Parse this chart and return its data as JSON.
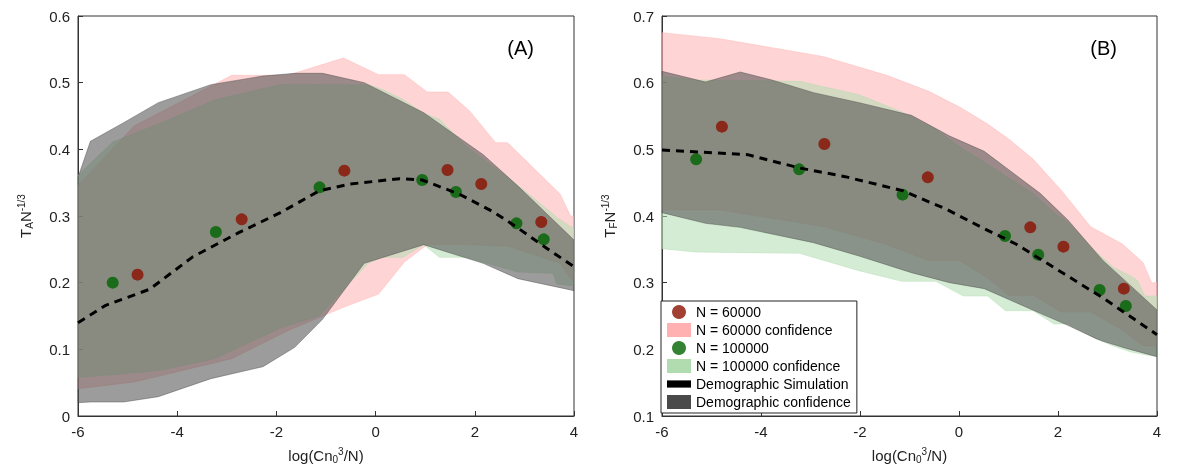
{
  "chart_data": [
    {
      "type": "scatter",
      "xlabel": "log(Cn$_{0}$$^{3}$/N)",
      "ylabel": "T$_{A}$N$^{-1/3}$",
      "annotations": [
        "(A)"
      ],
      "xlim": [
        -6,
        4
      ],
      "xticks": [
        -6,
        -4,
        -2,
        0,
        2,
        4
      ],
      "ylim": [
        0,
        0.6
      ],
      "yticks": [
        0,
        0.1,
        0.2,
        0.3,
        0.4,
        0.5,
        0.6
      ],
      "legend": false,
      "series": [
        {
          "color": "#8b1000",
          "x": [
            -4.8,
            -2.7,
            -0.63,
            1.45,
            2.13,
            3.34
          ],
          "values": [
            0.212,
            0.295,
            0.368,
            0.369,
            0.348,
            0.291
          ]
        },
        {
          "type": "area",
          "color": "#ffb0b0",
          "x": [
            -6,
            -4.87,
            -2.9,
            -1.77,
            -0.65,
            0.06,
            0.58,
            1.04,
            1.46,
            1.89,
            2.42,
            2.66,
            3.72,
            3.93,
            4
          ],
          "values": [
            null,
            null,
            null,
            null,
            null,
            null,
            null,
            null,
            null,
            null,
            null,
            null,
            null,
            null,
            null
          ],
          "upper": [
            0.346,
            0.435,
            0.511,
            0.511,
            0.537,
            0.512,
            0.512,
            0.486,
            0.486,
            0.458,
            0.41,
            0.41,
            0.333,
            0.3,
            0.3
          ],
          "lower": [
            0.041,
            0.051,
            0.086,
            0.128,
            0.163,
            0.183,
            0.231,
            0.257,
            0.257,
            0.257,
            0.255,
            0.255,
            0.229,
            0.206,
            0.204
          ]
        },
        {
          "color": "#006400",
          "x": [
            -5.3,
            -3.22,
            -1.13,
            0.94,
            1.62,
            2.84,
            3.39
          ],
          "values": [
            0.2,
            0.276,
            0.343,
            0.354,
            0.336,
            0.289,
            0.265
          ]
        },
        {
          "type": "area",
          "color": "#b0dcb0",
          "x": [
            -6,
            -5.3,
            -4.31,
            -3.25,
            -1.92,
            -1.14,
            -0.15,
            0.13,
            0.55,
            0.97,
            1.29,
            1.82,
            2.87,
            3.58,
            3.65,
            4
          ],
          "values": [
            null,
            null,
            null,
            null,
            null,
            null,
            null,
            null,
            null,
            null,
            null,
            null,
            null,
            null,
            null,
            null
          ],
          "upper": [
            0.361,
            0.411,
            0.44,
            0.474,
            0.497,
            0.497,
            0.497,
            0.49,
            0.475,
            0.454,
            0.445,
            0.405,
            0.346,
            0.303,
            0.298,
            0.281
          ],
          "lower": [
            0.058,
            0.062,
            0.069,
            0.086,
            0.132,
            0.15,
            0.229,
            0.238,
            0.238,
            0.257,
            0.238,
            0.238,
            0.216,
            0.214,
            0.198,
            0.195
          ]
        },
        {
          "type": "line",
          "color": "#000000",
          "line_style": "dashed",
          "marker": "none",
          "x": [
            -6,
            -5.44,
            -4.56,
            -3.68,
            -2.76,
            -1.92,
            -1.13,
            -0.51,
            0.48,
            0.94,
            1.68,
            2.38,
            2.87,
            3.44,
            4
          ],
          "values": [
            0.14,
            0.166,
            0.19,
            0.239,
            0.275,
            0.305,
            0.338,
            0.348,
            0.356,
            0.354,
            0.333,
            0.306,
            0.282,
            0.252,
            0.224
          ]
        },
        {
          "type": "area",
          "color": "#4a4a4a",
          "x": [
            -6,
            -5.75,
            -5.08,
            -4.38,
            -3.32,
            -2.27,
            -1.63,
            -1.07,
            -0.23,
            0.97,
            2.17,
            2.87,
            4
          ],
          "values": [
            null,
            null,
            null,
            null,
            null,
            null,
            null,
            null,
            null,
            null,
            null,
            null,
            null
          ],
          "upper": [
            0.358,
            0.412,
            0.44,
            0.47,
            0.497,
            0.51,
            0.514,
            0.514,
            0.5,
            0.455,
            0.392,
            0.345,
            0.264
          ],
          "lower": [
            0.02,
            0.021,
            0.021,
            0.029,
            0.056,
            0.074,
            0.103,
            0.145,
            0.229,
            0.257,
            0.229,
            0.206,
            0.188
          ]
        }
      ]
    },
    {
      "type": "scatter",
      "xlabel": "log(Cn$_{0}$$^{3}$/N)",
      "ylabel": "T$_{F}$N$^{-1/3}$",
      "annotations": [
        "(B)"
      ],
      "xlim": [
        -6,
        4
      ],
      "xticks": [
        -6,
        -4,
        -2,
        0,
        2,
        4
      ],
      "ylim": [
        0.1,
        0.7
      ],
      "yticks": [
        0.1,
        0.2,
        0.3,
        0.4,
        0.5,
        0.6,
        0.7
      ],
      "legend": "bottom left",
      "series": [
        {
          "name": "N = 60000",
          "color": "#8b1000",
          "x": [
            -4.79,
            -2.72,
            -0.63,
            1.44,
            2.11,
            3.33
          ],
          "values": [
            0.534,
            0.508,
            0.458,
            0.383,
            0.354,
            0.291
          ]
        },
        {
          "name": "N = 60000 confidence",
          "type": "area",
          "color": "#ffb0b0",
          "x": [
            -6,
            -4.84,
            -2.73,
            -1.46,
            -0.61,
            0.02,
            0.58,
            1.01,
            1.5,
            2.06,
            2.66,
            3.3,
            3.72,
            3.89,
            4
          ],
          "values": [
            null,
            null,
            null,
            null,
            null,
            null,
            null,
            null,
            null,
            null,
            null,
            null,
            null,
            null,
            null
          ],
          "upper": [
            0.675,
            0.666,
            0.639,
            0.611,
            0.587,
            0.563,
            0.538,
            0.515,
            0.485,
            0.439,
            0.384,
            0.358,
            0.33,
            0.3,
            0.3
          ],
          "lower": [
            0.409,
            0.409,
            0.384,
            0.357,
            0.333,
            0.333,
            0.307,
            0.281,
            0.281,
            0.256,
            0.256,
            0.229,
            0.205,
            0.205,
            0.205
          ]
        },
        {
          "name": "N = 100000",
          "color": "#006400",
          "x": [
            -5.31,
            -3.23,
            -1.14,
            0.93,
            1.6,
            2.84,
            3.37
          ],
          "values": [
            0.485,
            0.47,
            0.432,
            0.37,
            0.342,
            0.289,
            0.265
          ]
        },
        {
          "name": "N = 100000 confidence",
          "type": "area",
          "color": "#b0dcb0",
          "x": [
            -6,
            -5.33,
            -3.22,
            -2.02,
            -1.15,
            -0.47,
            0.09,
            0.58,
            0.94,
            1.5,
            1.92,
            2.2,
            2.77,
            3.12,
            3.47,
            3.61,
            3.75,
            4
          ],
          "values": [
            null,
            null,
            null,
            null,
            null,
            null,
            null,
            null,
            null,
            null,
            null,
            null,
            null,
            null,
            null,
            null,
            null,
            null
          ],
          "upper": [
            0.61,
            0.604,
            0.602,
            0.582,
            0.556,
            0.53,
            0.5,
            0.478,
            0.46,
            0.434,
            0.405,
            0.39,
            0.346,
            0.323,
            0.31,
            0.303,
            0.28,
            0.28
          ],
          "lower": [
            0.351,
            0.346,
            0.344,
            0.318,
            0.302,
            0.302,
            0.28,
            0.28,
            0.258,
            0.258,
            0.238,
            0.238,
            0.216,
            0.205,
            0.196,
            0.194,
            0.192,
            0.189
          ]
        },
        {
          "name": "Demographic Simulation",
          "type": "line",
          "color": "#000000",
          "line_style": "dashed",
          "marker": "none",
          "x": [
            -6,
            -4.98,
            -4.27,
            -3.22,
            -2.3,
            -1.14,
            -0.25,
            0.51,
            1.15,
            2.13,
            2.91,
            4
          ],
          "values": [
            0.499,
            0.495,
            0.492,
            0.472,
            0.459,
            0.438,
            0.41,
            0.381,
            0.358,
            0.313,
            0.277,
            0.222
          ]
        },
        {
          "name": "Demographic confidence",
          "type": "area",
          "color": "#4a4a4a",
          "x": [
            -6,
            -5.12,
            -4.42,
            -3.78,
            -2.94,
            -2.02,
            -0.96,
            -0.19,
            0.51,
            1.64,
            2.2,
            2.77,
            2.91,
            3.4,
            4
          ],
          "values": [
            null,
            null,
            null,
            null,
            null,
            null,
            null,
            null,
            null,
            null,
            null,
            null,
            null,
            null,
            null
          ],
          "upper": [
            0.617,
            0.601,
            0.616,
            0.604,
            0.585,
            0.57,
            0.551,
            0.52,
            0.497,
            0.434,
            0.394,
            0.345,
            0.333,
            0.3,
            0.259
          ],
          "lower": [
            0.405,
            0.389,
            0.383,
            0.373,
            0.36,
            0.34,
            0.315,
            0.3,
            0.291,
            0.254,
            0.236,
            0.216,
            0.212,
            0.201,
            0.189
          ]
        }
      ]
    }
  ]
}
